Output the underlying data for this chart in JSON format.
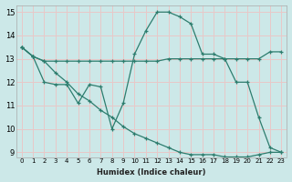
{
  "xlabel": "Humidex (Indice chaleur)",
  "bg_color": "#cce8e8",
  "grid_color": "#e8c8c8",
  "line_color": "#2d7d6e",
  "xlim_min": -0.5,
  "xlim_max": 23.5,
  "ylim_min": 8.8,
  "ylim_max": 15.3,
  "yticks": [
    9,
    10,
    11,
    12,
    13,
    14,
    15
  ],
  "xticks": [
    0,
    1,
    2,
    3,
    4,
    5,
    6,
    7,
    8,
    9,
    10,
    11,
    12,
    13,
    14,
    15,
    16,
    17,
    18,
    19,
    20,
    21,
    22,
    23
  ],
  "line1_x": [
    0,
    1,
    2,
    3,
    4,
    5,
    6,
    7,
    8,
    9,
    10,
    11,
    12,
    13,
    14,
    15,
    16,
    17,
    18,
    19,
    20,
    21,
    22,
    23
  ],
  "line1_y": [
    13.5,
    13.1,
    12.9,
    12.9,
    12.9,
    12.9,
    12.9,
    12.9,
    12.9,
    12.9,
    12.9,
    12.9,
    12.9,
    13.0,
    13.0,
    13.0,
    13.0,
    13.0,
    13.0,
    13.0,
    13.0,
    13.0,
    13.3,
    13.3
  ],
  "line2_x": [
    0,
    1,
    2,
    3,
    4,
    5,
    6,
    7,
    8,
    9,
    10,
    11,
    12,
    13,
    14,
    15,
    16,
    17,
    18,
    19,
    20,
    21,
    22,
    23
  ],
  "line2_y": [
    13.5,
    13.1,
    12.0,
    11.9,
    11.9,
    11.1,
    11.9,
    11.8,
    10.0,
    11.1,
    13.2,
    14.2,
    15.0,
    15.0,
    14.8,
    14.5,
    13.2,
    13.2,
    13.0,
    12.0,
    12.0,
    10.5,
    9.2,
    9.0
  ],
  "line3_x": [
    0,
    1,
    2,
    3,
    4,
    5,
    6,
    7,
    8,
    9,
    10,
    11,
    12,
    13,
    14,
    15,
    16,
    17,
    18,
    19,
    20,
    21,
    22,
    23
  ],
  "line3_y": [
    13.5,
    13.1,
    12.9,
    12.4,
    12.0,
    11.5,
    11.2,
    10.8,
    10.5,
    10.1,
    9.8,
    9.6,
    9.4,
    9.2,
    9.0,
    8.9,
    8.9,
    8.9,
    8.8,
    8.8,
    8.8,
    8.9,
    9.0,
    9.0
  ]
}
